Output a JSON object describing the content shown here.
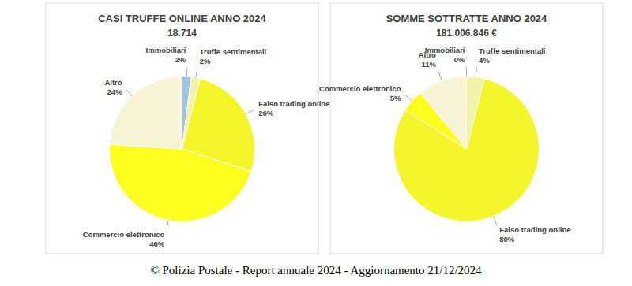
{
  "chart_data": [
    {
      "type": "pie",
      "title": "CASI TRUFFE ONLINE ANNO 2024",
      "subtitle": "18.714",
      "categories": [
        "Immobiliari",
        "Truffe sentimentali",
        "Falso trading online",
        "Commercio elettronico",
        "Altro"
      ],
      "values": [
        2,
        2,
        26,
        46,
        24
      ],
      "value_labels": [
        "2%",
        "2%",
        "26%",
        "46%",
        "24%"
      ],
      "colors": [
        "#9dc3e6",
        "#f2f2a8",
        "#f5f52c",
        "#ffff1f",
        "#f6f4d4"
      ],
      "data_labels": true
    },
    {
      "type": "pie",
      "title": "SOMME SOTTRATTE ANNO 2024",
      "subtitle": "181.006.846 €",
      "categories": [
        "Immobiliari",
        "Truffe sentimentali",
        "Falso trading online",
        "Commercio elettronico",
        "Altro"
      ],
      "values": [
        0,
        4,
        80,
        5,
        11
      ],
      "value_labels": [
        "0%",
        "4%",
        "80%",
        "5%",
        "11%"
      ],
      "colors": [
        "#9dc3e6",
        "#f2f2a8",
        "#f5f52c",
        "#ffff1f",
        "#f6f4d4"
      ],
      "data_labels": true
    }
  ],
  "caption": "© Polizia Postale - Report annuale 2024 - Aggiornamento 21/12/2024"
}
